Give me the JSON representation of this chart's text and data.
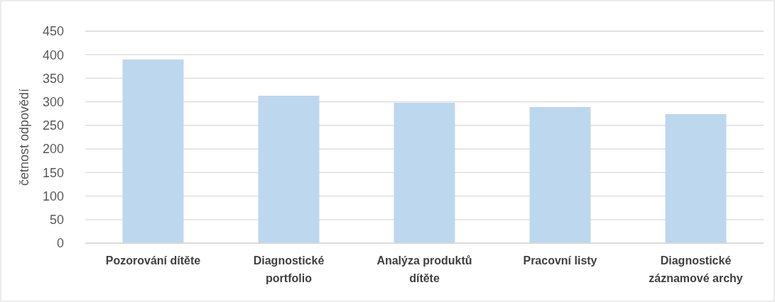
{
  "chart_data": {
    "type": "bar",
    "ylabel": "četnost odpovědí",
    "categories": [
      "Pozorování dítěte",
      "Diagnostické portfolio",
      "Analýza produktů dítěte",
      "Pracovní listy",
      "Diagnostické záznamové archy"
    ],
    "values": [
      390,
      313,
      298,
      289,
      274
    ],
    "color": "#bdd7ee",
    "ylim": [
      0,
      450
    ],
    "yticks": [
      0,
      50,
      100,
      150,
      200,
      250,
      300,
      350,
      400,
      450
    ],
    "grid": "y"
  }
}
